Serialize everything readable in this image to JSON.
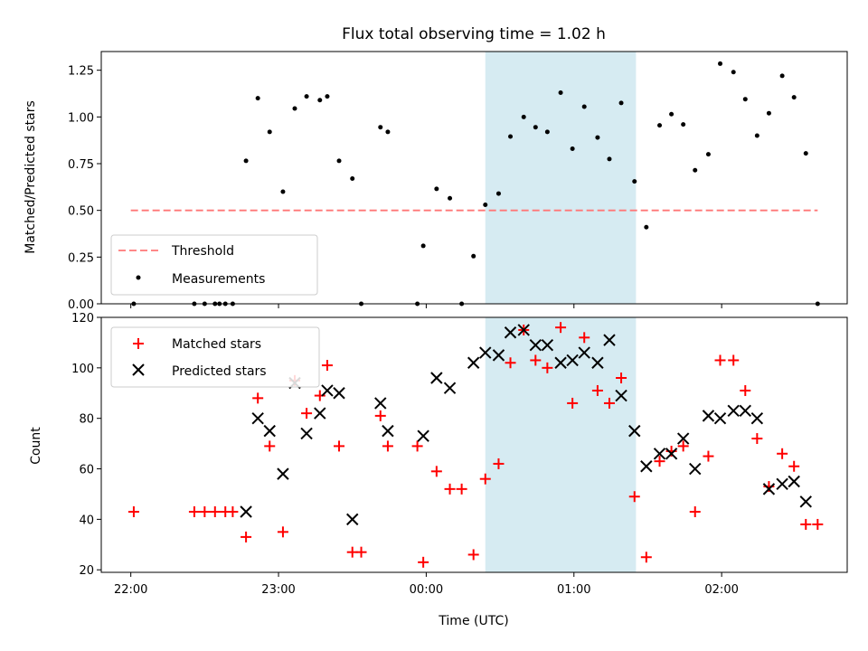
{
  "chart_data": [
    {
      "type": "scatter",
      "title": "Flux total observing time = 1.02 h",
      "ylabel": "Matched/Predicted stars",
      "xlabel": "",
      "x_unit": "hours since 22:00 UTC",
      "xlim": [
        -0.2,
        4.85
      ],
      "ylim": [
        0,
        1.35
      ],
      "yticks": [
        "0.00",
        "0.25",
        "0.50",
        "0.75",
        "1.00",
        "1.25"
      ],
      "xtick_labels_shown": false,
      "highlight": {
        "x0": 2.4,
        "x1": 3.42,
        "color": "#add8e6"
      },
      "threshold": {
        "name": "Threshold",
        "y": 0.5,
        "x0": 0.0,
        "x1": 4.65,
        "color": "#ff6666"
      },
      "series": [
        {
          "name": "Measurements",
          "color": "#000000",
          "points": [
            [
              0.02,
              0
            ],
            [
              0.43,
              0
            ],
            [
              0.5,
              0
            ],
            [
              0.57,
              0
            ],
            [
              0.6,
              0
            ],
            [
              0.64,
              0
            ],
            [
              0.69,
              0
            ],
            [
              0.78,
              0.765
            ],
            [
              0.86,
              1.1
            ],
            [
              0.94,
              0.92
            ],
            [
              1.03,
              0.6
            ],
            [
              1.11,
              1.045
            ],
            [
              1.19,
              1.11
            ],
            [
              1.28,
              1.09
            ],
            [
              1.33,
              1.11
            ],
            [
              1.41,
              0.765
            ],
            [
              1.5,
              0.67
            ],
            [
              1.56,
              0
            ],
            [
              1.69,
              0.945
            ],
            [
              1.74,
              0.92
            ],
            [
              1.94,
              0
            ],
            [
              1.98,
              0.31
            ],
            [
              2.07,
              0.615
            ],
            [
              2.16,
              0.565
            ],
            [
              2.24,
              0
            ],
            [
              2.32,
              0.255
            ],
            [
              2.4,
              0.53
            ],
            [
              2.49,
              0.59
            ],
            [
              2.57,
              0.895
            ],
            [
              2.66,
              1.0
            ],
            [
              2.74,
              0.945
            ],
            [
              2.82,
              0.92
            ],
            [
              2.91,
              1.13
            ],
            [
              2.99,
              0.83
            ],
            [
              3.07,
              1.055
            ],
            [
              3.16,
              0.89
            ],
            [
              3.24,
              0.775
            ],
            [
              3.32,
              1.075
            ],
            [
              3.41,
              0.655
            ],
            [
              3.49,
              0.41
            ],
            [
              3.58,
              0.955
            ],
            [
              3.66,
              1.015
            ],
            [
              3.74,
              0.96
            ],
            [
              3.82,
              0.715
            ],
            [
              3.91,
              0.8
            ],
            [
              3.99,
              1.285
            ],
            [
              4.08,
              1.24
            ],
            [
              4.16,
              1.095
            ],
            [
              4.24,
              0.9
            ],
            [
              4.32,
              1.02
            ],
            [
              4.41,
              1.22
            ],
            [
              4.49,
              1.105
            ],
            [
              4.57,
              0.805
            ],
            [
              4.65,
              0
            ]
          ]
        }
      ],
      "legend": {
        "position": "lower-left",
        "entries": [
          "Threshold",
          "Measurements"
        ]
      }
    },
    {
      "type": "scatter",
      "title": "",
      "ylabel": "Count",
      "xlabel": "Time (UTC)",
      "x_unit": "hours since 22:00 UTC",
      "xlim": [
        -0.2,
        4.85
      ],
      "ylim": [
        19,
        120
      ],
      "yticks": [
        "20",
        "40",
        "60",
        "80",
        "100",
        "120"
      ],
      "xticks": [
        {
          "x": 0,
          "label": "22:00"
        },
        {
          "x": 1,
          "label": "23:00"
        },
        {
          "x": 2,
          "label": "00:00"
        },
        {
          "x": 3,
          "label": "01:00"
        },
        {
          "x": 4,
          "label": "02:00"
        }
      ],
      "highlight": {
        "x0": 2.4,
        "x1": 3.42,
        "color": "#add8e6"
      },
      "series": [
        {
          "name": "Matched stars",
          "marker": "+",
          "color": "#ff0000",
          "points": [
            [
              0.02,
              43
            ],
            [
              0.43,
              43
            ],
            [
              0.5,
              43
            ],
            [
              0.57,
              43
            ],
            [
              0.64,
              43
            ],
            [
              0.69,
              43
            ],
            [
              0.78,
              33
            ],
            [
              0.86,
              88
            ],
            [
              0.94,
              69
            ],
            [
              1.03,
              35
            ],
            [
              1.11,
              95
            ],
            [
              1.19,
              82
            ],
            [
              1.28,
              89
            ],
            [
              1.33,
              101
            ],
            [
              1.41,
              69
            ],
            [
              1.5,
              27
            ],
            [
              1.56,
              27
            ],
            [
              1.69,
              81
            ],
            [
              1.74,
              69
            ],
            [
              1.94,
              69
            ],
            [
              1.98,
              23
            ],
            [
              2.07,
              59
            ],
            [
              2.16,
              52
            ],
            [
              2.24,
              52
            ],
            [
              2.32,
              26
            ],
            [
              2.4,
              56
            ],
            [
              2.49,
              62
            ],
            [
              2.57,
              102
            ],
            [
              2.66,
              115
            ],
            [
              2.74,
              103
            ],
            [
              2.82,
              100
            ],
            [
              2.91,
              116
            ],
            [
              2.99,
              86
            ],
            [
              3.07,
              112
            ],
            [
              3.16,
              91
            ],
            [
              3.24,
              86
            ],
            [
              3.32,
              96
            ],
            [
              3.41,
              49
            ],
            [
              3.49,
              25
            ],
            [
              3.58,
              63
            ],
            [
              3.66,
              67
            ],
            [
              3.74,
              69
            ],
            [
              3.82,
              43
            ],
            [
              3.91,
              65
            ],
            [
              3.99,
              103
            ],
            [
              4.08,
              103
            ],
            [
              4.16,
              91
            ],
            [
              4.24,
              72
            ],
            [
              4.32,
              53
            ],
            [
              4.41,
              66
            ],
            [
              4.49,
              61
            ],
            [
              4.57,
              38
            ],
            [
              4.65,
              38
            ]
          ]
        },
        {
          "name": "Predicted stars",
          "marker": "x",
          "color": "#000000",
          "points": [
            [
              0.78,
              43
            ],
            [
              0.86,
              80
            ],
            [
              0.94,
              75
            ],
            [
              1.03,
              58
            ],
            [
              1.11,
              94
            ],
            [
              1.19,
              74
            ],
            [
              1.28,
              82
            ],
            [
              1.33,
              91
            ],
            [
              1.41,
              90
            ],
            [
              1.5,
              40
            ],
            [
              1.69,
              86
            ],
            [
              1.74,
              75
            ],
            [
              1.98,
              73
            ],
            [
              2.07,
              96
            ],
            [
              2.16,
              92
            ],
            [
              2.32,
              102
            ],
            [
              2.4,
              106
            ],
            [
              2.49,
              105
            ],
            [
              2.57,
              114
            ],
            [
              2.66,
              115
            ],
            [
              2.74,
              109
            ],
            [
              2.82,
              109
            ],
            [
              2.91,
              102
            ],
            [
              2.99,
              103
            ],
            [
              3.07,
              106
            ],
            [
              3.16,
              102
            ],
            [
              3.24,
              111
            ],
            [
              3.32,
              89
            ],
            [
              3.41,
              75
            ],
            [
              3.49,
              61
            ],
            [
              3.58,
              66
            ],
            [
              3.66,
              66
            ],
            [
              3.74,
              72
            ],
            [
              3.82,
              60
            ],
            [
              3.91,
              81
            ],
            [
              3.99,
              80
            ],
            [
              4.08,
              83
            ],
            [
              4.16,
              83
            ],
            [
              4.24,
              80
            ],
            [
              4.32,
              52
            ],
            [
              4.41,
              54
            ],
            [
              4.49,
              55
            ],
            [
              4.57,
              47
            ]
          ]
        }
      ],
      "legend": {
        "position": "top-left",
        "entries": [
          "Matched stars",
          "Predicted stars"
        ]
      }
    }
  ]
}
